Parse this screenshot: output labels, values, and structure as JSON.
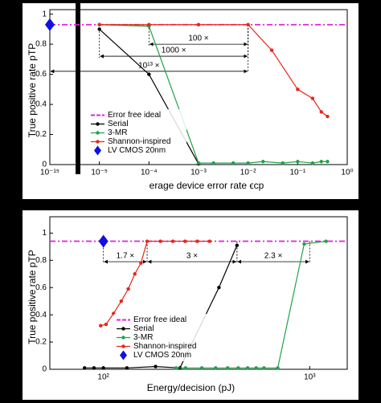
{
  "chart_data": [
    {
      "type": "line",
      "xscale": "log",
      "axis_break": true,
      "xlabel": "erage device error rate ϵcp",
      "ylabel": "True positive rate pTP",
      "xlim": [
        1e-15,
        1
      ],
      "ylim": [
        0,
        1.03
      ],
      "xticks": [
        {
          "value": 1e-15,
          "label": "10⁻¹⁵"
        },
        {
          "value": 1e-05,
          "label": "10⁻⁵"
        },
        {
          "value": 0.0001,
          "label": "10⁻⁴"
        },
        {
          "value": 0.001,
          "label": "10⁻³"
        },
        {
          "value": 0.01,
          "label": "10⁻²"
        },
        {
          "value": 0.1,
          "label": "10⁻¹"
        },
        {
          "value": 1,
          "label": "10⁰"
        }
      ],
      "yticks": [
        0,
        0.2,
        0.4,
        0.6,
        0.8,
        1
      ],
      "legend": "lower left",
      "series": [
        {
          "name": "Error free ideal",
          "color": "#e020e0",
          "dash": true,
          "marker": "none",
          "x": [
            1e-15,
            1
          ],
          "values": [
            0.93,
            0.93
          ]
        },
        {
          "name": "Serial",
          "color": "#000000",
          "marker": "circle",
          "x": [
            1e-05,
            0.0001,
            0.001
          ],
          "values": [
            0.9,
            0.6,
            0.005
          ]
        },
        {
          "name": "3-MR",
          "color": "#1fa34a",
          "marker": "circle",
          "x": [
            1e-05,
            0.0001,
            0.001,
            0.002,
            0.005,
            0.01,
            0.02,
            0.05,
            0.1,
            0.2,
            0.3,
            0.4
          ],
          "values": [
            0.93,
            0.92,
            0.01,
            0.01,
            0.01,
            0.01,
            0.02,
            0.01,
            0.02,
            0.01,
            0.02,
            0.02
          ]
        },
        {
          "name": "Shannon-inspired",
          "color": "#e8241a",
          "marker": "circle",
          "x": [
            1e-05,
            0.0001,
            0.001,
            0.01,
            0.03,
            0.1,
            0.2,
            0.3,
            0.4
          ],
          "values": [
            0.93,
            0.93,
            0.93,
            0.93,
            0.76,
            0.5,
            0.44,
            0.35,
            0.32
          ]
        },
        {
          "name": "LV CMOS 20nm",
          "color": "#1010e0",
          "marker": "diamond",
          "x": [
            1e-15
          ],
          "values": [
            0.93
          ]
        }
      ],
      "annotations": [
        {
          "text": "100 ×",
          "x": [
            0.0001,
            0.01
          ],
          "y": 0.8
        },
        {
          "text": "1000 ×",
          "x": [
            1e-05,
            0.01
          ],
          "y": 0.72
        },
        {
          "text": "10¹³ ×",
          "x": [
            1e-15,
            0.01
          ],
          "y": 0.62
        }
      ]
    },
    {
      "type": "line",
      "xscale": "log",
      "xlabel": "Energy/decision (pJ)",
      "ylabel": "True positive rate pTP",
      "xlim": [
        55,
        1520
      ],
      "ylim": [
        0,
        1.12
      ],
      "xticks": [
        {
          "value": 100,
          "label": "10²"
        },
        {
          "value": 1000,
          "label": "10³"
        }
      ],
      "yticks": [
        0,
        0.2,
        0.4,
        0.6,
        0.8,
        1
      ],
      "legend": "lower left",
      "series": [
        {
          "name": "Error free ideal",
          "color": "#e020e0",
          "dash": true,
          "marker": "none",
          "x": [
            55,
            1520
          ],
          "values": [
            0.94,
            0.94
          ]
        },
        {
          "name": "Serial",
          "color": "#000000",
          "marker": "circle",
          "x": [
            81,
            90,
            100,
            130,
            179,
            235,
            363,
            444
          ],
          "values": [
            0.01,
            0.01,
            0.01,
            0.01,
            0.02,
            0.01,
            0.6,
            0.91
          ]
        },
        {
          "name": "3-MR",
          "color": "#1fa34a",
          "marker": "circle",
          "x": [
            225,
            250,
            300,
            350,
            400,
            450,
            500,
            550,
            600,
            700,
            940,
            1200
          ],
          "values": [
            0.01,
            0.01,
            0.01,
            0.01,
            0.01,
            0.01,
            0.01,
            0.01,
            0.01,
            0.01,
            0.92,
            0.94
          ]
        },
        {
          "name": "Shannon-inspired",
          "color": "#e8241a",
          "marker": "circle",
          "x": [
            97,
            103,
            112,
            122,
            132,
            142,
            152,
            163,
            189,
            217,
            249,
            285,
            327
          ],
          "values": [
            0.32,
            0.33,
            0.41,
            0.5,
            0.59,
            0.7,
            0.78,
            0.94,
            0.94,
            0.94,
            0.94,
            0.94,
            0.94
          ]
        },
        {
          "name": "LV CMOS 20nm",
          "color": "#1010e0",
          "marker": "diamond",
          "x": [
            100
          ],
          "values": [
            0.94
          ]
        }
      ],
      "annotations": [
        {
          "text": "1.7 ×",
          "x": [
            100,
            163
          ],
          "y": 0.79
        },
        {
          "text": "3 ×",
          "x": [
            163,
            444
          ],
          "y": 0.79
        },
        {
          "text": "2.3 ×",
          "x": [
            444,
            1000
          ],
          "y": 0.79
        }
      ]
    }
  ]
}
